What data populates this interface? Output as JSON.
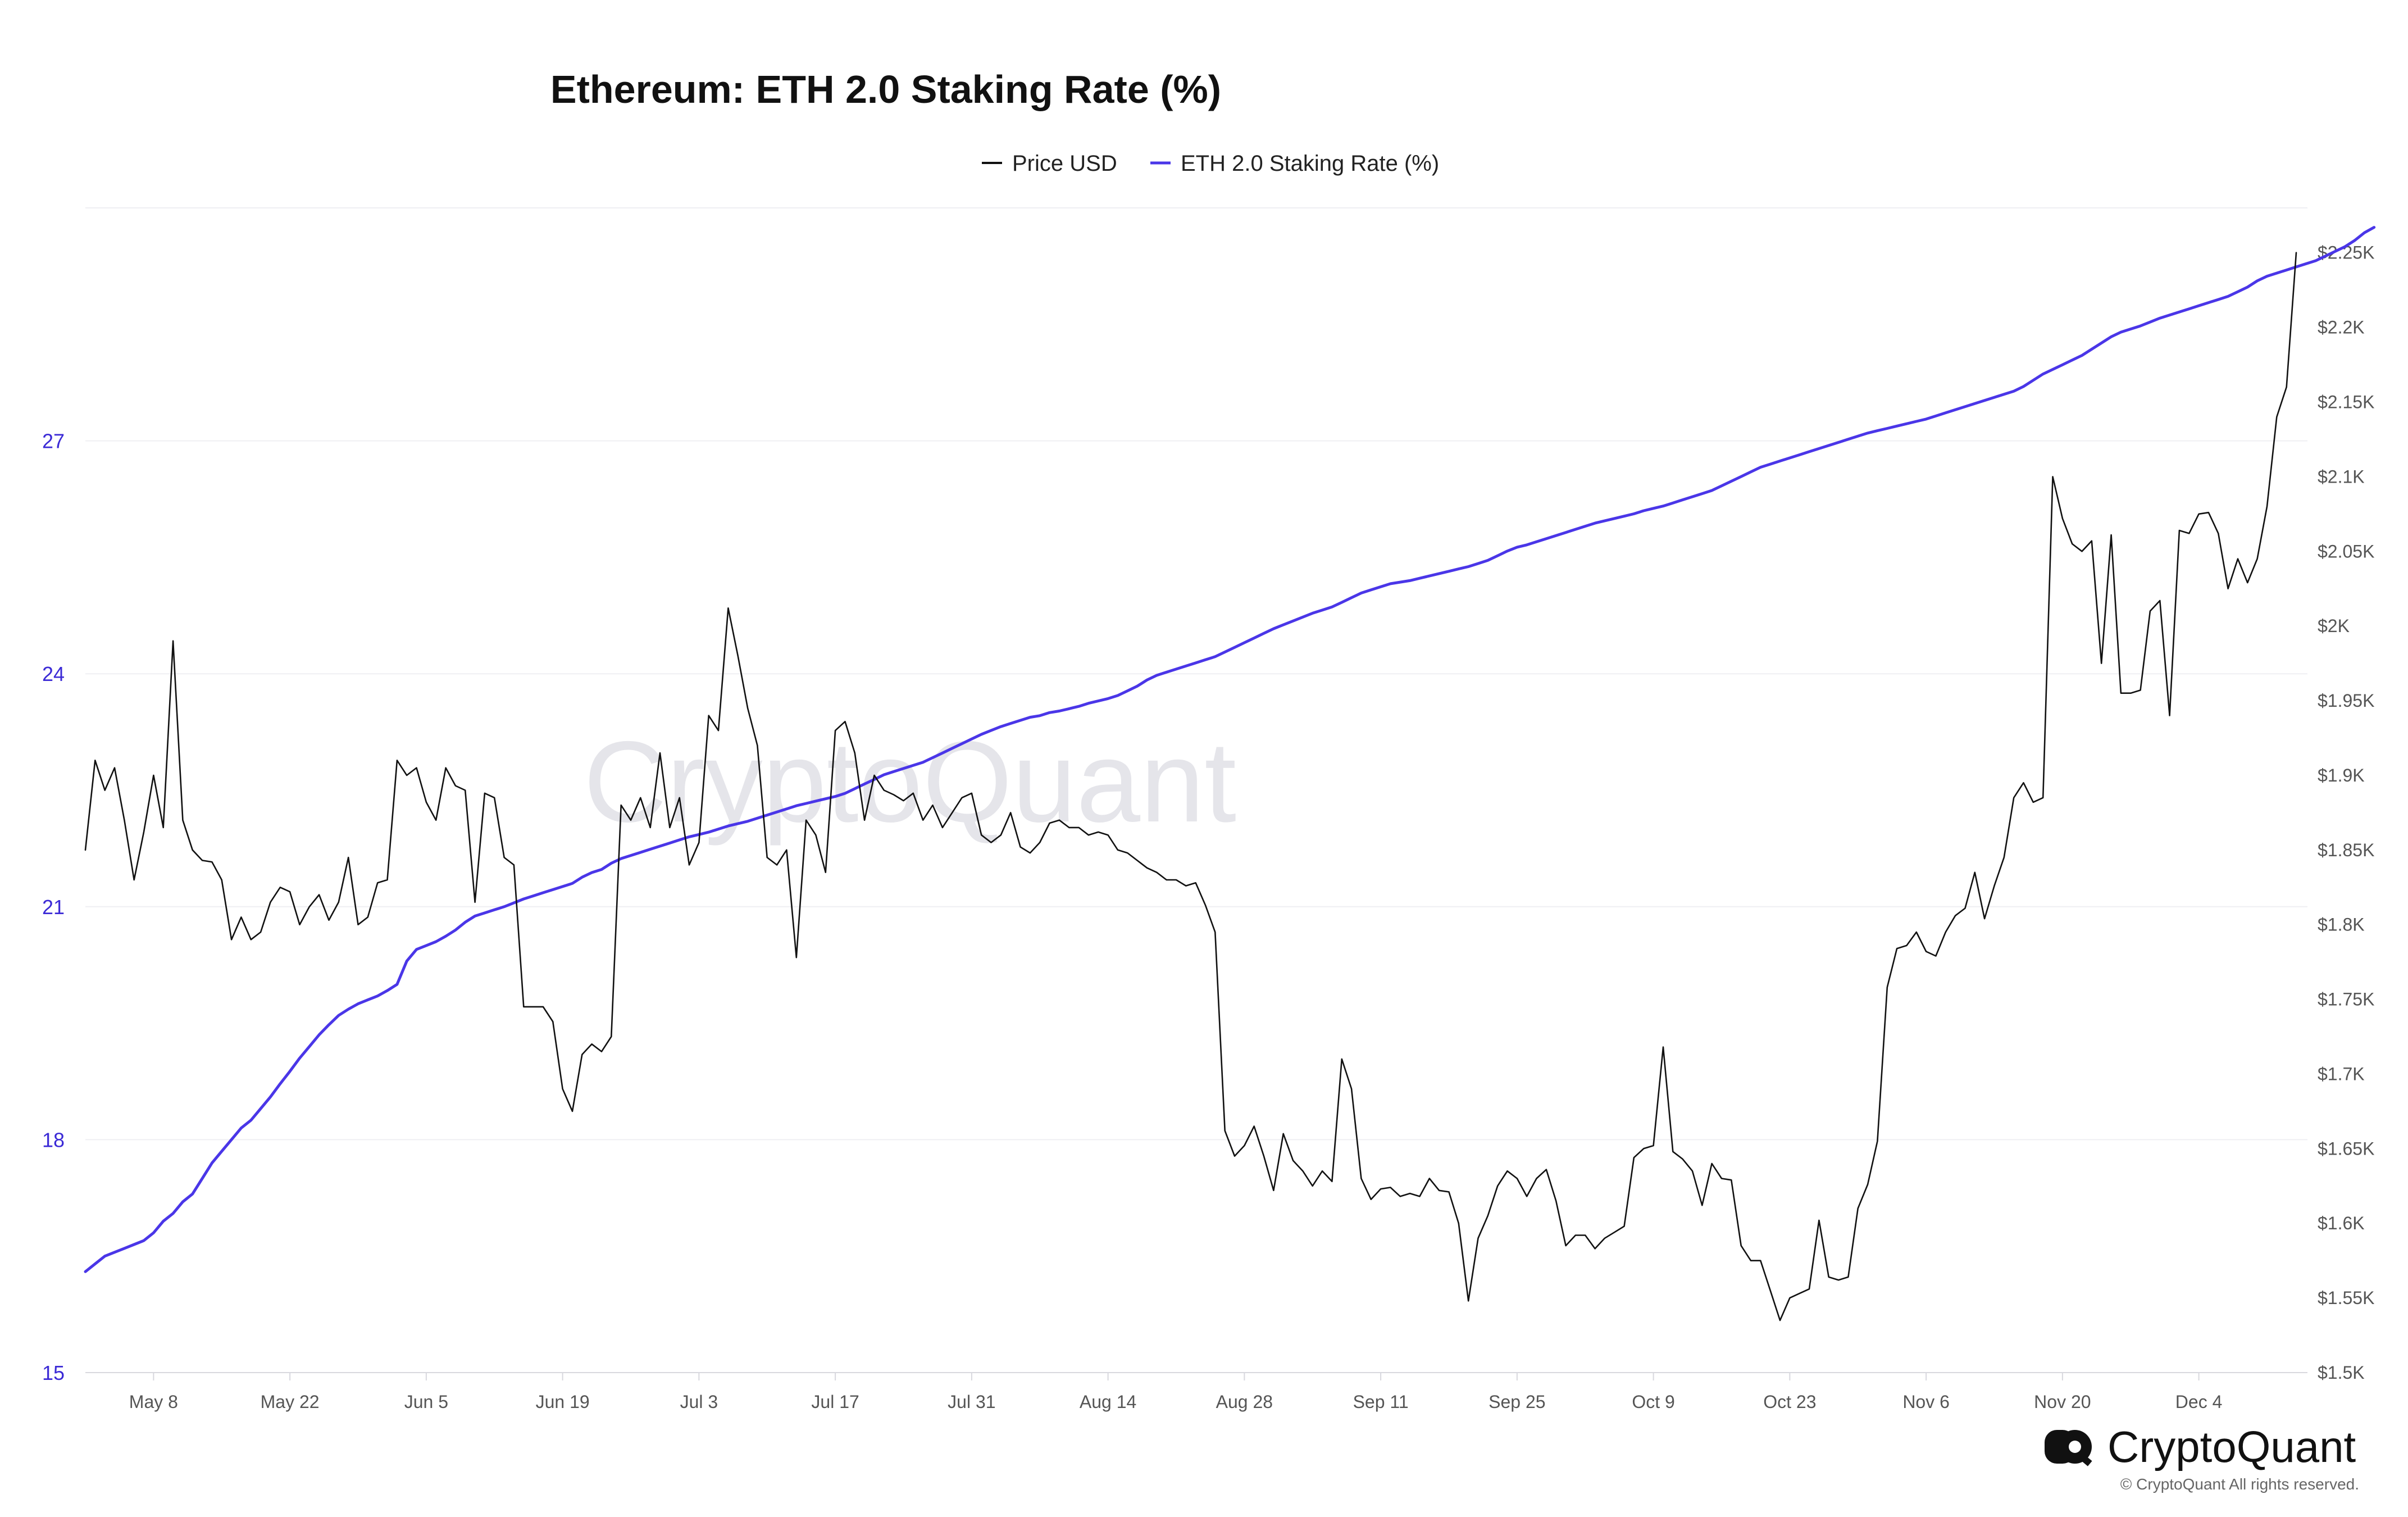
{
  "chart_data": {
    "type": "line",
    "title": "Ethereum: ETH 2.0 Staking Rate (%)",
    "legend": {
      "placement": "top-center",
      "entries": [
        "Price USD",
        "ETH 2.0 Staking Rate (%)"
      ]
    },
    "x_ticks": [
      "May 8",
      "May 22",
      "Jun 5",
      "Jun 19",
      "Jul 3",
      "Jul 17",
      "Jul 31",
      "Aug 14",
      "Aug 28",
      "Sep 11",
      "Sep 25",
      "Oct 9",
      "Oct 23",
      "Nov 6",
      "Nov 20",
      "Dec 4"
    ],
    "y_left": {
      "range": [
        15,
        30
      ],
      "ticks": [
        "15",
        "18",
        "21",
        "24",
        "27"
      ]
    },
    "y_right": {
      "range": [
        1.5,
        2.28
      ],
      "ticks": [
        "$1.5K",
        "$1.55K",
        "$1.6K",
        "$1.65K",
        "$1.7K",
        "$1.75K",
        "$1.8K",
        "$1.85K",
        "$1.9K",
        "$1.95K",
        "$2K",
        "$2.05K",
        "$2.1K",
        "$2.15K",
        "$2.2K",
        "$2.25K"
      ]
    },
    "grid": true,
    "series": [
      {
        "name": "Price USD",
        "axis": "right",
        "unit": "K USD",
        "color": "#111111",
        "values": [
          1.85,
          1.91,
          1.89,
          1.905,
          1.87,
          1.83,
          1.862,
          1.9,
          1.865,
          1.99,
          1.87,
          1.85,
          1.843,
          1.842,
          1.83,
          1.79,
          1.805,
          1.79,
          1.795,
          1.815,
          1.825,
          1.822,
          1.8,
          1.812,
          1.82,
          1.803,
          1.815,
          1.845,
          1.8,
          1.805,
          1.828,
          1.83,
          1.91,
          1.9,
          1.905,
          1.882,
          1.87,
          1.905,
          1.893,
          1.89,
          1.815,
          1.888,
          1.885,
          1.845,
          1.84,
          1.745,
          1.745,
          1.745,
          1.735,
          1.69,
          1.675,
          1.713,
          1.72,
          1.715,
          1.725,
          1.88,
          1.87,
          1.885,
          1.865,
          1.915,
          1.865,
          1.885,
          1.84,
          1.855,
          1.94,
          1.93,
          2.012,
          1.98,
          1.945,
          1.92,
          1.845,
          1.84,
          1.85,
          1.778,
          1.87,
          1.86,
          1.835,
          1.93,
          1.936,
          1.915,
          1.87,
          1.9,
          1.89,
          1.887,
          1.883,
          1.888,
          1.87,
          1.88,
          1.865,
          1.875,
          1.885,
          1.888,
          1.86,
          1.855,
          1.86,
          1.875,
          1.852,
          1.848,
          1.855,
          1.868,
          1.87,
          1.865,
          1.865,
          1.86,
          1.862,
          1.86,
          1.85,
          1.848,
          1.843,
          1.838,
          1.835,
          1.83,
          1.83,
          1.826,
          1.828,
          1.813,
          1.795,
          1.662,
          1.645,
          1.652,
          1.665,
          1.645,
          1.622,
          1.66,
          1.642,
          1.635,
          1.625,
          1.635,
          1.628,
          1.71,
          1.69,
          1.63,
          1.616,
          1.623,
          1.624,
          1.618,
          1.62,
          1.618,
          1.63,
          1.622,
          1.621,
          1.6,
          1.548,
          1.59,
          1.605,
          1.625,
          1.635,
          1.63,
          1.618,
          1.63,
          1.636,
          1.615,
          1.585,
          1.592,
          1.592,
          1.583,
          1.59,
          1.594,
          1.598,
          1.644,
          1.65,
          1.652,
          1.718,
          1.648,
          1.643,
          1.635,
          1.612,
          1.64,
          1.63,
          1.629,
          1.585,
          1.575,
          1.575,
          1.555,
          1.535,
          1.55,
          1.553,
          1.556,
          1.602,
          1.564,
          1.562,
          1.564,
          1.61,
          1.626,
          1.655,
          1.758,
          1.784,
          1.786,
          1.795,
          1.782,
          1.779,
          1.795,
          1.806,
          1.811,
          1.835,
          1.804,
          1.826,
          1.845,
          1.885,
          1.895,
          1.882,
          1.885,
          2.1,
          2.072,
          2.055,
          2.05,
          2.057,
          1.975,
          2.061,
          1.955,
          1.955,
          1.957,
          2.01,
          2.017,
          1.94,
          2.064,
          2.062,
          2.075,
          2.076,
          2.062,
          2.025,
          2.045,
          2.029,
          2.045,
          2.08,
          2.14,
          2.16,
          2.25
        ]
      },
      {
        "name": "ETH 2.0 Staking Rate (%)",
        "axis": "left",
        "unit": "%",
        "color": "#4a36e8",
        "values": [
          16.3,
          16.4,
          16.5,
          16.55,
          16.6,
          16.65,
          16.7,
          16.8,
          16.95,
          17.05,
          17.2,
          17.3,
          17.5,
          17.7,
          17.85,
          18.0,
          18.15,
          18.25,
          18.4,
          18.55,
          18.72,
          18.88,
          19.05,
          19.2,
          19.35,
          19.48,
          19.6,
          19.68,
          19.75,
          19.8,
          19.85,
          19.92,
          20.0,
          20.3,
          20.45,
          20.5,
          20.55,
          20.62,
          20.7,
          20.8,
          20.88,
          20.92,
          20.96,
          21.0,
          21.05,
          21.1,
          21.14,
          21.18,
          21.22,
          21.26,
          21.3,
          21.38,
          21.44,
          21.48,
          21.56,
          21.62,
          21.66,
          21.7,
          21.74,
          21.78,
          21.82,
          21.86,
          21.9,
          21.93,
          21.96,
          22.0,
          22.04,
          22.07,
          22.1,
          22.14,
          22.18,
          22.22,
          22.26,
          22.3,
          22.33,
          22.36,
          22.39,
          22.42,
          22.46,
          22.52,
          22.58,
          22.64,
          22.7,
          22.74,
          22.78,
          22.82,
          22.86,
          22.92,
          22.98,
          23.04,
          23.1,
          23.16,
          23.22,
          23.27,
          23.32,
          23.36,
          23.4,
          23.44,
          23.46,
          23.5,
          23.52,
          23.55,
          23.58,
          23.62,
          23.65,
          23.68,
          23.72,
          23.78,
          23.84,
          23.92,
          23.98,
          24.02,
          24.06,
          24.1,
          24.14,
          24.18,
          24.22,
          24.28,
          24.34,
          24.4,
          24.46,
          24.52,
          24.58,
          24.63,
          24.68,
          24.73,
          24.78,
          24.82,
          24.86,
          24.92,
          24.98,
          25.04,
          25.08,
          25.12,
          25.16,
          25.18,
          25.2,
          25.23,
          25.26,
          25.29,
          25.32,
          25.35,
          25.38,
          25.42,
          25.46,
          25.52,
          25.58,
          25.63,
          25.66,
          25.7,
          25.74,
          25.78,
          25.82,
          25.86,
          25.9,
          25.94,
          25.97,
          26.0,
          26.03,
          26.06,
          26.1,
          26.13,
          26.16,
          26.2,
          26.24,
          26.28,
          26.32,
          26.36,
          26.42,
          26.48,
          26.54,
          26.6,
          26.66,
          26.7,
          26.74,
          26.78,
          26.82,
          26.86,
          26.9,
          26.94,
          26.98,
          27.02,
          27.06,
          27.1,
          27.13,
          27.16,
          27.19,
          27.22,
          27.25,
          27.28,
          27.32,
          27.36,
          27.4,
          27.44,
          27.48,
          27.52,
          27.56,
          27.6,
          27.64,
          27.7,
          27.78,
          27.86,
          27.92,
          27.98,
          28.04,
          28.1,
          28.18,
          28.26,
          28.34,
          28.4,
          28.44,
          28.48,
          28.53,
          28.58,
          28.62,
          28.66,
          28.7,
          28.74,
          28.78,
          28.82,
          28.86,
          28.92,
          28.98,
          29.06,
          29.12,
          29.16,
          29.2,
          29.24,
          29.28,
          29.32,
          29.38,
          29.44,
          29.5,
          29.58,
          29.68,
          29.75
        ]
      }
    ]
  },
  "branding": {
    "watermark": "CryptoQuant",
    "logo_text": "CryptoQuant",
    "copyright": "© CryptoQuant All rights reserved."
  }
}
